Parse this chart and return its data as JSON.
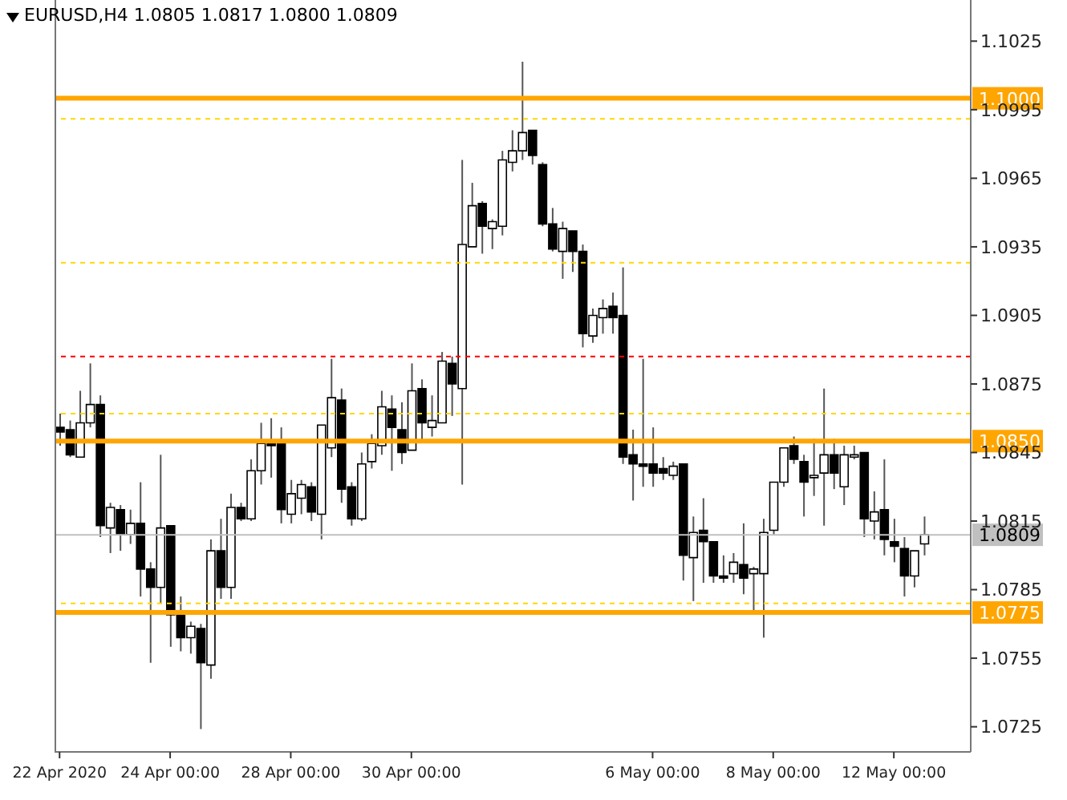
{
  "chart_data": {
    "type": "candlestick",
    "title": "EURUSD,H4 1.0805 1.0817 1.0800 1.0809",
    "categories": [
      "22 Apr 2020",
      null,
      null,
      null,
      null,
      null,
      null,
      null,
      null,
      null,
      null,
      "24 Apr 00:00",
      null,
      null,
      null,
      null,
      null,
      null,
      null,
      null,
      null,
      null,
      null,
      "28 Apr 00:00",
      null,
      null,
      null,
      null,
      null,
      null,
      null,
      null,
      null,
      null,
      null,
      "30 Apr 00:00",
      null,
      null,
      null,
      null,
      null,
      null,
      null,
      null,
      null,
      null,
      null,
      null,
      null,
      null,
      null,
      null,
      null,
      null,
      null,
      null,
      null,
      null,
      null,
      "6 May 00:00",
      null,
      null,
      null,
      null,
      null,
      null,
      null,
      null,
      null,
      null,
      null,
      "8 May 00:00",
      null,
      null,
      null,
      null,
      null,
      null,
      null,
      null,
      null,
      null,
      null,
      "12 May 00:00",
      null,
      null,
      null
    ],
    "ohlc": [
      [
        1.0856,
        1.0862,
        1.0848,
        1.0854
      ],
      [
        1.0855,
        1.0859,
        1.0843,
        1.0844
      ],
      [
        1.0843,
        1.0872,
        1.0843,
        1.0858
      ],
      [
        1.0858,
        1.0884,
        1.0856,
        1.0866
      ],
      [
        1.0866,
        1.087,
        1.0808,
        1.0813
      ],
      [
        1.0812,
        1.0823,
        1.0801,
        1.0821
      ],
      [
        1.082,
        1.0822,
        1.0802,
        1.0809
      ],
      [
        1.0809,
        1.082,
        1.0805,
        1.0814
      ],
      [
        1.0814,
        1.0832,
        1.0782,
        1.0794
      ],
      [
        1.0794,
        1.0797,
        1.0753,
        1.0786
      ],
      [
        1.0786,
        1.0844,
        1.0779,
        1.0812
      ],
      [
        1.0813,
        1.0813,
        1.076,
        1.0774
      ],
      [
        1.0775,
        1.0782,
        1.0758,
        1.0764
      ],
      [
        1.0764,
        1.0771,
        1.0757,
        1.0769
      ],
      [
        1.0768,
        1.077,
        1.0724,
        1.0753
      ],
      [
        1.0752,
        1.0807,
        1.0746,
        1.0802
      ],
      [
        1.0802,
        1.0816,
        1.0781,
        1.0786
      ],
      [
        1.0786,
        1.0827,
        1.0781,
        1.0821
      ],
      [
        1.0821,
        1.0823,
        1.0815,
        1.0816
      ],
      [
        1.0816,
        1.0842,
        1.0815,
        1.0837
      ],
      [
        1.0837,
        1.0858,
        1.0831,
        1.0849
      ],
      [
        1.0849,
        1.086,
        1.0834,
        1.0848
      ],
      [
        1.0849,
        1.0856,
        1.0814,
        1.082
      ],
      [
        1.0818,
        1.0833,
        1.0814,
        1.0827
      ],
      [
        1.0825,
        1.0833,
        1.0818,
        1.0831
      ],
      [
        1.083,
        1.0832,
        1.0815,
        1.0819
      ],
      [
        1.0818,
        1.0857,
        1.0807,
        1.0857
      ],
      [
        1.0847,
        1.0886,
        1.0843,
        1.0869
      ],
      [
        1.0868,
        1.0873,
        1.0823,
        1.0829
      ],
      [
        1.083,
        1.0832,
        1.0813,
        1.0816
      ],
      [
        1.0816,
        1.0845,
        1.0815,
        1.084
      ],
      [
        1.0841,
        1.0853,
        1.0838,
        1.0849
      ],
      [
        1.0848,
        1.0872,
        1.0844,
        1.0865
      ],
      [
        1.0864,
        1.087,
        1.0837,
        1.0856
      ],
      [
        1.0855,
        1.0867,
        1.084,
        1.0845
      ],
      [
        1.0846,
        1.0884,
        1.0846,
        1.0872
      ],
      [
        1.0873,
        1.0877,
        1.085,
        1.0858
      ],
      [
        1.0856,
        1.087,
        1.0852,
        1.0859
      ],
      [
        1.0858,
        1.0889,
        1.0858,
        1.0885
      ],
      [
        1.0884,
        1.0887,
        1.0861,
        1.0875
      ],
      [
        1.0873,
        1.0973,
        1.0831,
        1.0936
      ],
      [
        1.0935,
        1.0963,
        1.0935,
        1.0953
      ],
      [
        1.0954,
        1.0955,
        1.0932,
        1.0944
      ],
      [
        1.0943,
        1.0947,
        1.0934,
        1.0946
      ],
      [
        1.0944,
        1.0977,
        1.094,
        1.0973
      ],
      [
        1.0972,
        1.0986,
        1.0968,
        1.0977
      ],
      [
        1.0977,
        1.1016,
        1.0973,
        1.0985
      ],
      [
        1.0986,
        1.0986,
        1.0971,
        1.0975
      ],
      [
        1.0971,
        1.0972,
        1.0944,
        1.0945
      ],
      [
        1.0945,
        1.0952,
        1.0933,
        1.0934
      ],
      [
        1.0933,
        1.0946,
        1.0921,
        1.0943
      ],
      [
        1.0942,
        1.0942,
        1.0924,
        1.0933
      ],
      [
        1.0933,
        1.0936,
        1.0891,
        1.0897
      ],
      [
        1.0896,
        1.0908,
        1.0893,
        1.0905
      ],
      [
        1.0904,
        1.0912,
        1.0897,
        1.0908
      ],
      [
        1.0909,
        1.0915,
        1.0897,
        1.0904
      ],
      [
        1.0905,
        1.0926,
        1.084,
        1.0843
      ],
      [
        1.0844,
        1.0855,
        1.0824,
        1.084
      ],
      [
        1.084,
        1.0886,
        1.083,
        1.0839
      ],
      [
        1.084,
        1.0856,
        1.083,
        1.0836
      ],
      [
        1.0838,
        1.0843,
        1.0833,
        1.0836
      ],
      [
        1.0835,
        1.0841,
        1.0833,
        1.0839
      ],
      [
        1.084,
        1.084,
        1.0789,
        1.08
      ],
      [
        1.0799,
        1.0817,
        1.078,
        1.081
      ],
      [
        1.0811,
        1.0825,
        1.0788,
        1.0806
      ],
      [
        1.0806,
        1.0806,
        1.0788,
        1.0791
      ],
      [
        1.0791,
        1.08,
        1.0788,
        1.079
      ],
      [
        1.0792,
        1.0801,
        1.0788,
        1.0797
      ],
      [
        1.0796,
        1.0814,
        1.0783,
        1.079
      ],
      [
        1.0792,
        1.0795,
        1.0775,
        1.0794
      ],
      [
        1.0792,
        1.0816,
        1.0764,
        1.081
      ],
      [
        1.0811,
        1.0832,
        1.0809,
        1.0832
      ],
      [
        1.0832,
        1.0847,
        1.083,
        1.0847
      ],
      [
        1.0848,
        1.0852,
        1.084,
        1.0842
      ],
      [
        1.0841,
        1.0844,
        1.0817,
        1.0832
      ],
      [
        1.0834,
        1.0851,
        1.0826,
        1.0835
      ],
      [
        1.0836,
        1.0873,
        1.0813,
        1.0844
      ],
      [
        1.0844,
        1.0851,
        1.0829,
        1.0836
      ],
      [
        1.083,
        1.0848,
        1.0822,
        1.0844
      ],
      [
        1.0843,
        1.0848,
        1.0842,
        1.0844
      ],
      [
        1.0845,
        1.0845,
        1.0808,
        1.0816
      ],
      [
        1.0815,
        1.0828,
        1.0807,
        1.0819
      ],
      [
        1.082,
        1.0842,
        1.08,
        1.0807
      ],
      [
        1.0806,
        1.0816,
        1.0797,
        1.0804
      ],
      [
        1.0803,
        1.0808,
        1.0782,
        1.0791
      ],
      [
        1.0791,
        1.0802,
        1.0786,
        1.0802
      ],
      [
        1.0805,
        1.0817,
        1.08,
        1.0809
      ]
    ],
    "ylim": [
      1.0714,
      1.1043
    ],
    "yticks": [
      1.0725,
      1.0755,
      1.0785,
      1.0815,
      1.0845,
      1.0875,
      1.0905,
      1.0935,
      1.0965,
      1.0995,
      1.1025
    ],
    "ref_lines": [
      {
        "axis": "y",
        "value": 1.1,
        "label": "1.1000",
        "color": "#ffa500",
        "line_style": "solid"
      },
      {
        "axis": "y",
        "value": 1.085,
        "label": "1.0850",
        "color": "#ffa500",
        "line_style": "solid"
      },
      {
        "axis": "y",
        "value": 1.0775,
        "label": "1.0775",
        "color": "#ffa500",
        "line_style": "solid"
      },
      {
        "axis": "y",
        "value": 1.0809,
        "label": "1.0809",
        "color": "#c0c0c0",
        "line_style": "solid"
      },
      {
        "axis": "y",
        "value": 1.0991,
        "color": "#ffd700",
        "line_style": "dashed"
      },
      {
        "axis": "y",
        "value": 1.0928,
        "color": "#ffd700",
        "line_style": "dashed"
      },
      {
        "axis": "y",
        "value": 1.0862,
        "color": "#ffd700",
        "line_style": "dashed"
      },
      {
        "axis": "y",
        "value": 1.0779,
        "color": "#ffd700",
        "line_style": "dashed"
      },
      {
        "axis": "y",
        "value": 1.0887,
        "color": "#ff0000",
        "line_style": "dashed"
      }
    ]
  }
}
